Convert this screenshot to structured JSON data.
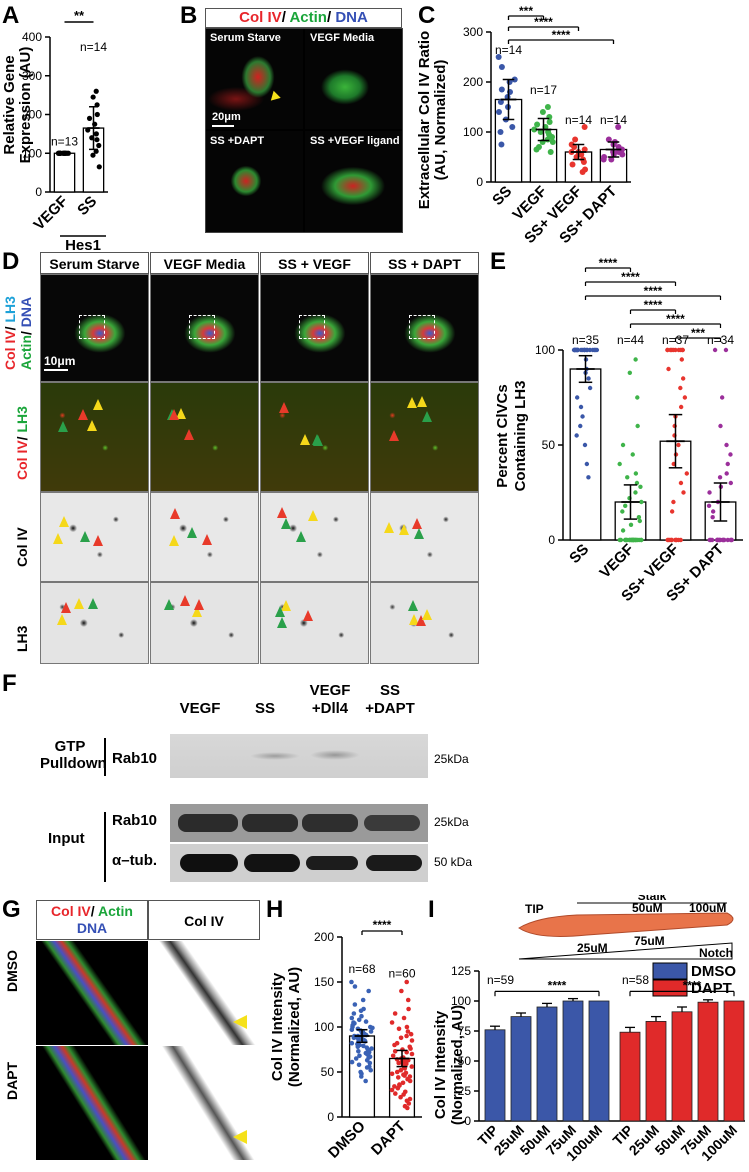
{
  "figure": {
    "panel_labels": [
      "A",
      "B",
      "C",
      "D",
      "E",
      "F",
      "G",
      "H",
      "I"
    ]
  },
  "panel_A": {
    "ylabel_line1": "Relative Gene",
    "ylabel_line2": "Expression (AU)",
    "gene": "Hes1",
    "sig": "**",
    "yticks": [
      "0",
      "100",
      "200",
      "300",
      "400"
    ]
  },
  "panel_B": {
    "title_parts": [
      {
        "text": "Col IV",
        "color": "#e8262b"
      },
      {
        "text": "/ ",
        "color": "#000000"
      },
      {
        "text": "Actin",
        "color": "#1aa53a"
      },
      {
        "text": "/ ",
        "color": "#000000"
      },
      {
        "text": "DNA",
        "color": "#3550b5"
      }
    ],
    "tiles": [
      "Serum Starve",
      "VEGF Media",
      "SS +DAPT",
      "SS +VEGF ligand"
    ],
    "scale": "20μm"
  },
  "panel_C": {
    "ylabel_line1": "Extracellular Col IV Ratio",
    "ylabel_line2": "(AU, Normalized)",
    "sigs": [
      "***",
      "****",
      "****"
    ],
    "yticks": [
      "0",
      "100",
      "200",
      "300"
    ]
  },
  "panel_D": {
    "columns": [
      "Serum Starve",
      "VEGF Media",
      "SS + VEGF",
      "SS + DAPT"
    ],
    "rows": [
      "Col IV/ LH3 Actin/ DNA",
      "Col IV/ LH3",
      "Col IV",
      "LH3"
    ],
    "row1_parts": [
      {
        "text": "Col IV",
        "color": "#e8262b"
      },
      {
        "text": "/ ",
        "color": "#000000"
      },
      {
        "text": "LH3",
        "color": "#1da1d8"
      }
    ],
    "row1b_parts": [
      {
        "text": "Actin",
        "color": "#1aa53a"
      },
      {
        "text": "/ ",
        "color": "#000000"
      },
      {
        "text": "DNA",
        "color": "#3550b5"
      }
    ],
    "row2_parts": [
      {
        "text": "Col IV",
        "color": "#e8262b"
      },
      {
        "text": "/ ",
        "color": "#000000"
      },
      {
        "text": "LH3",
        "color": "#1aa53a"
      }
    ],
    "row3": "Col IV",
    "row4": "LH3",
    "scale": "10μm"
  },
  "panel_E": {
    "ylabel_line1": "Percent ClVCs",
    "ylabel_line2": "Containing LH3",
    "sigs": [
      "****",
      "****",
      "****",
      "****",
      "ns",
      "****",
      "***"
    ],
    "yticks": [
      "0",
      "50",
      "100"
    ]
  },
  "panel_F": {
    "lanes": [
      "VEGF",
      "SS",
      "VEGF\n+Dll4",
      "SS\n+DAPT"
    ],
    "lane_lines": [
      [
        "VEGF"
      ],
      [
        "SS"
      ],
      [
        "VEGF",
        "+Dll4"
      ],
      [
        "SS",
        "+DAPT"
      ]
    ],
    "group_gtp": [
      "GTP",
      "Pulldown"
    ],
    "group_input": "Input",
    "blots": [
      "Rab10",
      "Rab10",
      "α–tub."
    ],
    "sizes": [
      "25kDa",
      "25kDa",
      "50 kDa"
    ]
  },
  "panel_G": {
    "header_parts": [
      {
        "text": "Col IV",
        "color": "#e8262b"
      },
      {
        "text": "/ ",
        "color": "#000000"
      },
      {
        "text": "Actin",
        "color": "#1aa53a"
      }
    ],
    "header_dna": "DNA",
    "header_right": "Col IV",
    "rows": [
      "DMSO",
      "DAPT"
    ]
  },
  "panel_H": {
    "ylabel_line1": "Col IV Intensity",
    "ylabel_line2": "(Normalized, AU)",
    "sig": "****",
    "yticks": [
      "0",
      "50",
      "100",
      "150",
      "200"
    ]
  },
  "panel_I": {
    "ylabel_line1": "Col IV Intensity",
    "ylabel_line2": "(Normalized, AU)",
    "schematic": {
      "stalk": "Stalk",
      "tip": "TIP",
      "p25": "25uM",
      "p50": "50uM",
      "p75": "75uM",
      "p100": "100uM",
      "notch": "Notch"
    },
    "legend": [
      {
        "name": "DMSO",
        "color": "#3b57a8"
      },
      {
        "name": "DAPT",
        "color": "#e02a2a"
      }
    ],
    "sigs": [
      "****",
      "****"
    ],
    "yticks": [
      "0",
      "25",
      "50",
      "75",
      "100",
      "125"
    ]
  },
  "chart_data": [
    {
      "id": "A",
      "type": "bar",
      "categories": [
        "VEGF",
        "SS"
      ],
      "values": [
        100,
        165
      ],
      "errors": [
        2,
        55
      ],
      "n": [
        "n=13",
        "n=14"
      ],
      "ylim": [
        0,
        400
      ],
      "bar_color": "#ffffff",
      "point_color": "#000000",
      "points": [
        [
          100,
          100,
          100,
          100,
          100,
          100,
          100,
          100,
          100,
          100,
          100,
          100,
          100
        ],
        [
          260,
          245,
          225,
          200,
          190,
          175,
          160,
          150,
          140,
          135,
          120,
          105,
          95,
          65
        ]
      ]
    },
    {
      "id": "C",
      "type": "bar",
      "categories": [
        "SS",
        "VEGF",
        "SS+ VEGF",
        "SS+ DAPT"
      ],
      "values": [
        165,
        105,
        60,
        65
      ],
      "errors": [
        40,
        22,
        15,
        15
      ],
      "n": [
        "n=14",
        "n=17",
        "n=14",
        "n=14"
      ],
      "ylim": [
        0,
        300
      ],
      "point_colors": [
        "#3a57a8",
        "#3fb44a",
        "#e8352e",
        "#9b2f9b"
      ],
      "points": [
        [
          250,
          230,
          205,
          200,
          185,
          180,
          170,
          160,
          150,
          140,
          125,
          110,
          100,
          75
        ],
        [
          150,
          140,
          130,
          120,
          115,
          110,
          105,
          100,
          100,
          95,
          90,
          85,
          80,
          80,
          70,
          65,
          60
        ],
        [
          110,
          85,
          75,
          70,
          65,
          60,
          60,
          55,
          50,
          45,
          40,
          35,
          25,
          20
        ],
        [
          110,
          85,
          80,
          75,
          70,
          65,
          65,
          60,
          60,
          55,
          55,
          50,
          45,
          45
        ]
      ]
    },
    {
      "id": "E",
      "type": "bar",
      "categories": [
        "SS",
        "VEGF",
        "SS+ VEGF",
        "SS+ DAPT"
      ],
      "values": [
        90,
        20,
        52,
        20
      ],
      "errors": [
        7,
        9,
        14,
        10
      ],
      "n": [
        "n=35",
        "n=44",
        "n=37",
        "n=34"
      ],
      "ylim": [
        0,
        100
      ],
      "point_colors": [
        "#3a57a8",
        "#3fb44a",
        "#e8352e",
        "#9b2f9b"
      ],
      "points": [
        [
          100,
          100,
          100,
          100,
          100,
          100,
          100,
          100,
          100,
          100,
          100,
          100,
          100,
          100,
          100,
          100,
          100,
          100,
          100,
          100,
          100,
          100,
          95,
          90,
          88,
          85,
          80,
          75,
          70,
          65,
          60,
          55,
          50,
          40,
          33
        ],
        [
          95,
          88,
          75,
          60,
          50,
          45,
          40,
          35,
          33,
          30,
          28,
          25,
          22,
          20,
          18,
          15,
          12,
          10,
          8,
          5,
          0,
          0,
          0,
          0,
          0,
          0,
          0,
          0,
          0,
          0,
          0,
          0,
          0,
          0,
          0,
          0,
          0,
          0,
          0,
          0,
          0,
          0,
          0,
          0
        ],
        [
          100,
          100,
          100,
          100,
          100,
          100,
          100,
          100,
          100,
          100,
          95,
          90,
          85,
          80,
          75,
          70,
          65,
          60,
          55,
          50,
          45,
          40,
          35,
          30,
          25,
          20,
          15,
          0,
          0,
          0,
          0,
          0,
          0,
          0,
          0,
          0,
          0
        ],
        [
          100,
          100,
          75,
          60,
          50,
          45,
          40,
          35,
          33,
          30,
          28,
          25,
          20,
          18,
          15,
          12,
          0,
          0,
          0,
          0,
          0,
          0,
          0,
          0,
          0,
          0,
          0,
          0,
          0,
          0,
          0,
          0,
          0,
          0
        ]
      ]
    },
    {
      "id": "H",
      "type": "bar",
      "categories": [
        "DMSO",
        "DAPT"
      ],
      "values": [
        90,
        65
      ],
      "errors": [
        7,
        9
      ],
      "n": [
        "n=68",
        "n=60"
      ],
      "ylim": [
        0,
        200
      ],
      "point_colors": [
        "#3a62b5",
        "#e02a2a"
      ],
      "points": [
        [
          150,
          145,
          140,
          130,
          125,
          120,
          118,
          115,
          112,
          110,
          108,
          106,
          105,
          104,
          102,
          100,
          100,
          99,
          98,
          97,
          96,
          95,
          95,
          94,
          93,
          92,
          91,
          90,
          90,
          89,
          88,
          88,
          87,
          86,
          85,
          85,
          84,
          83,
          82,
          81,
          80,
          80,
          79,
          78,
          77,
          76,
          75,
          74,
          73,
          72,
          71,
          70,
          69,
          68,
          67,
          66,
          65,
          63,
          61,
          60,
          58,
          56,
          55,
          52,
          50,
          48,
          45,
          40
        ],
        [
          150,
          140,
          130,
          120,
          115,
          110,
          105,
          100,
          98,
          95,
          92,
          90,
          88,
          85,
          82,
          80,
          78,
          76,
          75,
          73,
          72,
          70,
          68,
          66,
          65,
          64,
          63,
          62,
          61,
          60,
          59,
          58,
          56,
          55,
          54,
          52,
          50,
          49,
          48,
          47,
          46,
          45,
          44,
          42,
          40,
          38,
          36,
          35,
          34,
          32,
          30,
          28,
          26,
          25,
          22,
          20,
          18,
          15,
          12,
          10
        ]
      ]
    },
    {
      "id": "I",
      "type": "bar",
      "categories": [
        "TIP",
        "25uM",
        "50uM",
        "75uM",
        "100uM"
      ],
      "series": [
        {
          "name": "DMSO",
          "values": [
            76,
            87,
            95,
            100,
            100
          ],
          "errors": [
            3,
            3,
            3,
            2,
            0
          ]
        },
        {
          "name": "DAPT",
          "values": [
            74,
            83,
            91,
            99,
            100
          ],
          "errors": [
            4,
            4,
            4,
            2,
            0
          ]
        }
      ],
      "n": [
        "n=59",
        "n=58"
      ],
      "ylim": [
        0,
        125
      ]
    }
  ]
}
